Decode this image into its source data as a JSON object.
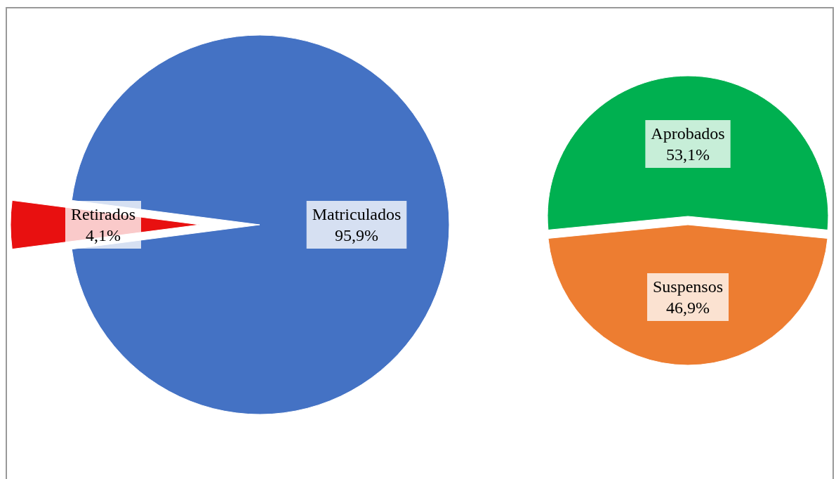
{
  "chart_data": [
    {
      "type": "pie",
      "categories": [
        "Retirados",
        "Matriculados"
      ],
      "values": [
        4.1,
        95.9
      ],
      "colors": [
        "#e81010",
        "#4472c4"
      ],
      "value_labels": [
        "4,1%",
        "95,9%"
      ]
    },
    {
      "type": "pie",
      "categories": [
        "Aprobados",
        "Suspensos"
      ],
      "values": [
        53.1,
        46.9
      ],
      "colors": [
        "#00b050",
        "#ed7d31"
      ],
      "value_labels": [
        "53,1%",
        "46,9%"
      ]
    }
  ]
}
